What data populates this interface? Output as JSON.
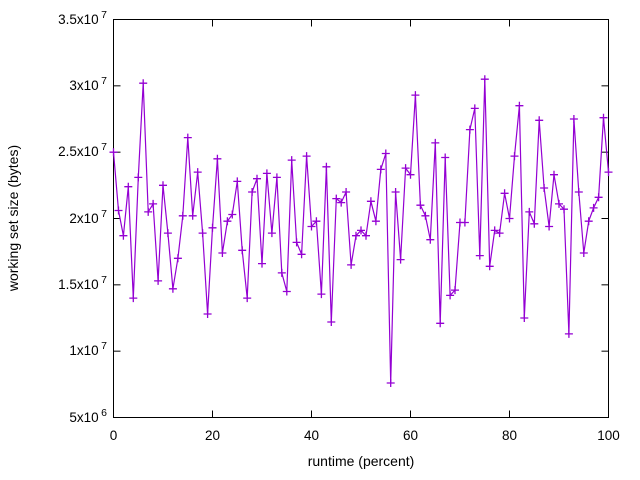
{
  "figure": {
    "background": "#ffffff",
    "axis_color": "#000000",
    "text_color": "#000000"
  },
  "chart_data": {
    "type": "line",
    "title": "",
    "xlabel": "runtime (percent)",
    "ylabel": "working set size (bytes)",
    "xlim": [
      0,
      100
    ],
    "ylim": [
      5000000,
      35000000
    ],
    "xticks": [
      0,
      20,
      40,
      60,
      80,
      100
    ],
    "xtick_labels": [
      "0",
      "20",
      "40",
      "60",
      "80",
      "100"
    ],
    "yticks": [
      5000000,
      10000000,
      15000000,
      20000000,
      25000000,
      30000000,
      35000000
    ],
    "ytick_labels": [
      {
        "base": "5x10",
        "exp": "6"
      },
      {
        "base": "1x10",
        "exp": "7"
      },
      {
        "base": "1.5x10",
        "exp": "7"
      },
      {
        "base": "2x10",
        "exp": "7"
      },
      {
        "base": "2.5x10",
        "exp": "7"
      },
      {
        "base": "3x10",
        "exp": "7"
      },
      {
        "base": "3.5x10",
        "exp": "7"
      }
    ],
    "grid": false,
    "legend": "none",
    "marker": "plus",
    "line_color": "#9400d3",
    "series": [
      {
        "name": "working set size",
        "x": [
          0,
          1,
          2,
          3,
          4,
          5,
          6,
          7,
          8,
          9,
          10,
          11,
          12,
          13,
          14,
          15,
          16,
          17,
          18,
          19,
          20,
          21,
          22,
          23,
          24,
          25,
          26,
          27,
          28,
          29,
          30,
          31,
          32,
          33,
          34,
          35,
          36,
          37,
          38,
          39,
          40,
          41,
          42,
          43,
          44,
          45,
          46,
          47,
          48,
          49,
          50,
          51,
          52,
          53,
          54,
          55,
          56,
          57,
          58,
          59,
          60,
          61,
          62,
          63,
          64,
          65,
          66,
          67,
          68,
          69,
          70,
          71,
          72,
          73,
          74,
          75,
          76,
          77,
          78,
          79,
          80,
          81,
          82,
          83,
          84,
          85,
          86,
          87,
          88,
          89,
          90,
          91,
          92,
          93,
          94,
          95,
          96,
          97,
          98,
          99,
          100
        ],
        "values": [
          25000000,
          20600000,
          18700000,
          22400000,
          14000000,
          23100000,
          30200000,
          20500000,
          21100000,
          15300000,
          22500000,
          18900000,
          14700000,
          17000000,
          20200000,
          26100000,
          20200000,
          23500000,
          18900000,
          12800000,
          19300000,
          24500000,
          17400000,
          19800000,
          20300000,
          22800000,
          17600000,
          14000000,
          22000000,
          23000000,
          16600000,
          23400000,
          18900000,
          23100000,
          15900000,
          14500000,
          24400000,
          18200000,
          17300000,
          24700000,
          19400000,
          19800000,
          14300000,
          23900000,
          12200000,
          21500000,
          21200000,
          22000000,
          16500000,
          18700000,
          19100000,
          18700000,
          21300000,
          19800000,
          23700000,
          24900000,
          7600000,
          22000000,
          16900000,
          23800000,
          23300000,
          29300000,
          21000000,
          20200000,
          18400000,
          25700000,
          12100000,
          24600000,
          14200000,
          14600000,
          19700000,
          19700000,
          26700000,
          28300000,
          17200000,
          30500000,
          16400000,
          19100000,
          18900000,
          21900000,
          20000000,
          24700000,
          28500000,
          12500000,
          20500000,
          19600000,
          27400000,
          22300000,
          19400000,
          23300000,
          21100000,
          20700000,
          11300000,
          27500000,
          22000000,
          17400000,
          19800000,
          20800000,
          21600000,
          27600000,
          23500000
        ]
      }
    ]
  }
}
